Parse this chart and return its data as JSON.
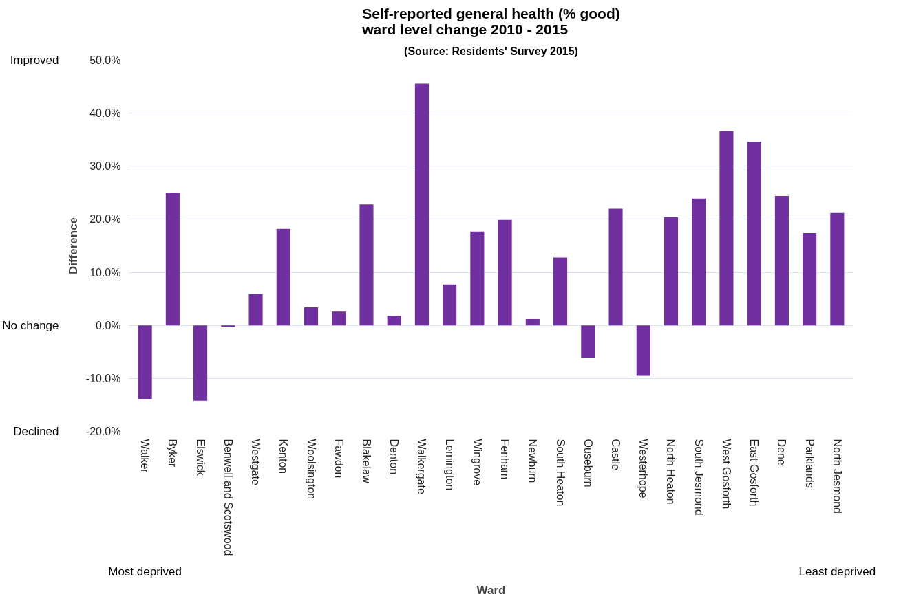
{
  "chart_data": {
    "type": "bar",
    "title": "Self-reported general health (% good)\nward level change 2010 - 2015",
    "subtitle": "(Source: Residents' Survey 2015)",
    "xlabel": "Ward",
    "ylabel": "Difference",
    "categories": [
      "Walker",
      "Byker",
      "Elswick",
      "Benwell and Scotswood",
      "Westgate",
      "Kenton",
      "Woolsington",
      "Fawdon",
      "Blakelaw",
      "Denton",
      "Walkergate",
      "Lemington",
      "Wingrove",
      "Fenham",
      "Newburn",
      "South Heaton",
      "Ouseburn",
      "Castle",
      "Westerhope",
      "North Heaton",
      "South Jesmond",
      "West Gosforth",
      "East Gosforth",
      "Dene",
      "Parklands",
      "North Jesmond"
    ],
    "values": [
      -13.9,
      25.0,
      -14.2,
      -0.3,
      5.9,
      18.2,
      3.4,
      2.6,
      22.8,
      1.8,
      45.6,
      7.7,
      17.7,
      19.9,
      1.2,
      12.8,
      -6.1,
      22.0,
      -9.5,
      20.4,
      23.9,
      36.6,
      34.6,
      24.4,
      17.4,
      21.2
    ],
    "color": "#7030a0",
    "ylim": [
      -20,
      50
    ],
    "yticks": [
      {
        "value": -20,
        "label": "-20.0%"
      },
      {
        "value": -10,
        "label": "-10.0%"
      },
      {
        "value": 0,
        "label": "0.0%"
      },
      {
        "value": 10,
        "label": "10.0%"
      },
      {
        "value": 20,
        "label": "20.0%"
      },
      {
        "value": 30,
        "label": "30.0%"
      },
      {
        "value": 40,
        "label": "40.0%"
      },
      {
        "value": 50,
        "label": "50.0%"
      }
    ],
    "grid": "y",
    "annotations": [
      "Improved",
      "No change",
      "Declined",
      "Most deprived",
      "Least deprived"
    ]
  }
}
